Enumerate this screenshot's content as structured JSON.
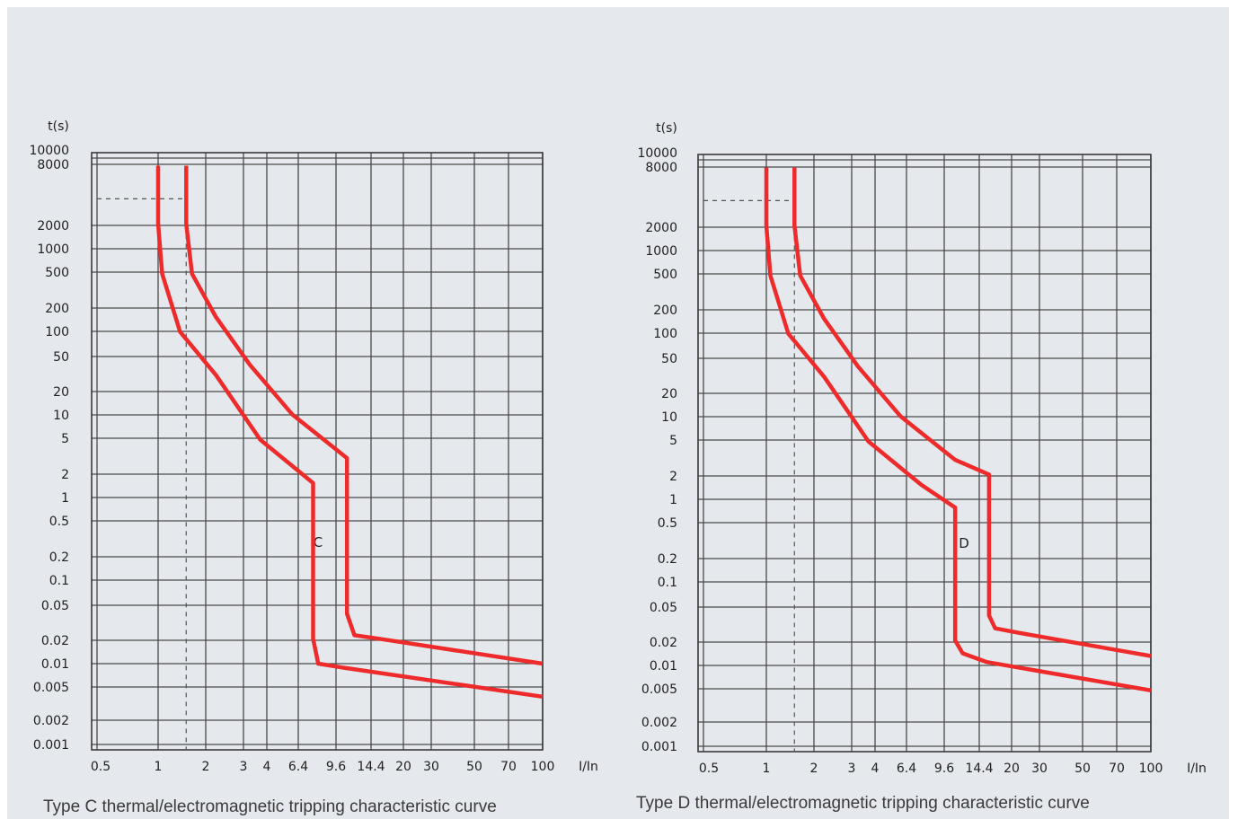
{
  "chart_data": [
    {
      "type": "line",
      "title": "Type C thermal/electromagnetic tripping characteristic curve",
      "xlabel": "I/In",
      "ylabel": "t(s)",
      "x_scale": "log",
      "y_scale": "log",
      "x_ticks": [
        "0.5",
        "1",
        "2",
        "3",
        "4",
        "6.4",
        "9.6",
        "14.4",
        "20",
        "30",
        "50",
        "70",
        "100"
      ],
      "y_ticks": [
        "10000",
        "8000",
        "2000",
        "1000",
        "500",
        "200",
        "100",
        "50",
        "20",
        "10",
        "5",
        "2",
        "1",
        "0.5",
        "0.2",
        "0.1",
        "0.05",
        "0.02",
        "0.01",
        "0.005",
        "0.002",
        "0.001"
      ],
      "curve_label": "C",
      "grid": true,
      "series": [
        {
          "role": "lower-bound",
          "points": [
            [
              1,
              10000
            ],
            [
              1,
              2000
            ],
            [
              1.05,
              500
            ],
            [
              1.3,
              100
            ],
            [
              2,
              30
            ],
            [
              3.4,
              5
            ],
            [
              6.4,
              1.5
            ],
            [
              6.4,
              0.02
            ],
            [
              6.8,
              0.01
            ],
            [
              9,
              0.009
            ],
            [
              100,
              0.004
            ]
          ]
        },
        {
          "role": "upper-bound",
          "points": [
            [
              1.4,
              10000
            ],
            [
              1.4,
              2000
            ],
            [
              1.5,
              500
            ],
            [
              2,
              150
            ],
            [
              3,
              40
            ],
            [
              5,
              10
            ],
            [
              9.6,
              3
            ],
            [
              9.6,
              0.04
            ],
            [
              10.5,
              0.022
            ],
            [
              14,
              0.02
            ],
            [
              100,
              0.01
            ]
          ]
        }
      ],
      "reference": {
        "x": 1.4,
        "y": 4000
      }
    },
    {
      "type": "line",
      "title": "Type D thermal/electromagnetic tripping characteristic curve",
      "xlabel": "I/In",
      "ylabel": "t(s)",
      "x_scale": "log",
      "y_scale": "log",
      "x_ticks": [
        "0.5",
        "1",
        "2",
        "3",
        "4",
        "6.4",
        "9.6",
        "14.4",
        "20",
        "30",
        "50",
        "70",
        "100"
      ],
      "y_ticks": [
        "10000",
        "8000",
        "2000",
        "1000",
        "500",
        "200",
        "100",
        "50",
        "20",
        "10",
        "5",
        "2",
        "1",
        "0.5",
        "0.2",
        "0.1",
        "0.05",
        "0.02",
        "0.01",
        "0.005",
        "0.002",
        "0.001"
      ],
      "curve_label": "D",
      "grid": true,
      "series": [
        {
          "role": "lower-bound",
          "points": [
            [
              1,
              10000
            ],
            [
              1,
              2000
            ],
            [
              1.05,
              500
            ],
            [
              1.3,
              100
            ],
            [
              2,
              30
            ],
            [
              3.4,
              5
            ],
            [
              6.4,
              1.5
            ],
            [
              9.6,
              0.8
            ],
            [
              9.6,
              0.02
            ],
            [
              10.5,
              0.014
            ],
            [
              14,
              0.011
            ],
            [
              100,
              0.005
            ]
          ]
        },
        {
          "role": "upper-bound",
          "points": [
            [
              1.4,
              10000
            ],
            [
              1.4,
              2000
            ],
            [
              1.5,
              500
            ],
            [
              2,
              150
            ],
            [
              3,
              40
            ],
            [
              5,
              10
            ],
            [
              9.6,
              3
            ],
            [
              14.4,
              2
            ],
            [
              14.4,
              0.04
            ],
            [
              15.5,
              0.028
            ],
            [
              20,
              0.025
            ],
            [
              100,
              0.013
            ]
          ]
        }
      ],
      "reference": {
        "x": 1.4,
        "y": 4000
      }
    }
  ]
}
